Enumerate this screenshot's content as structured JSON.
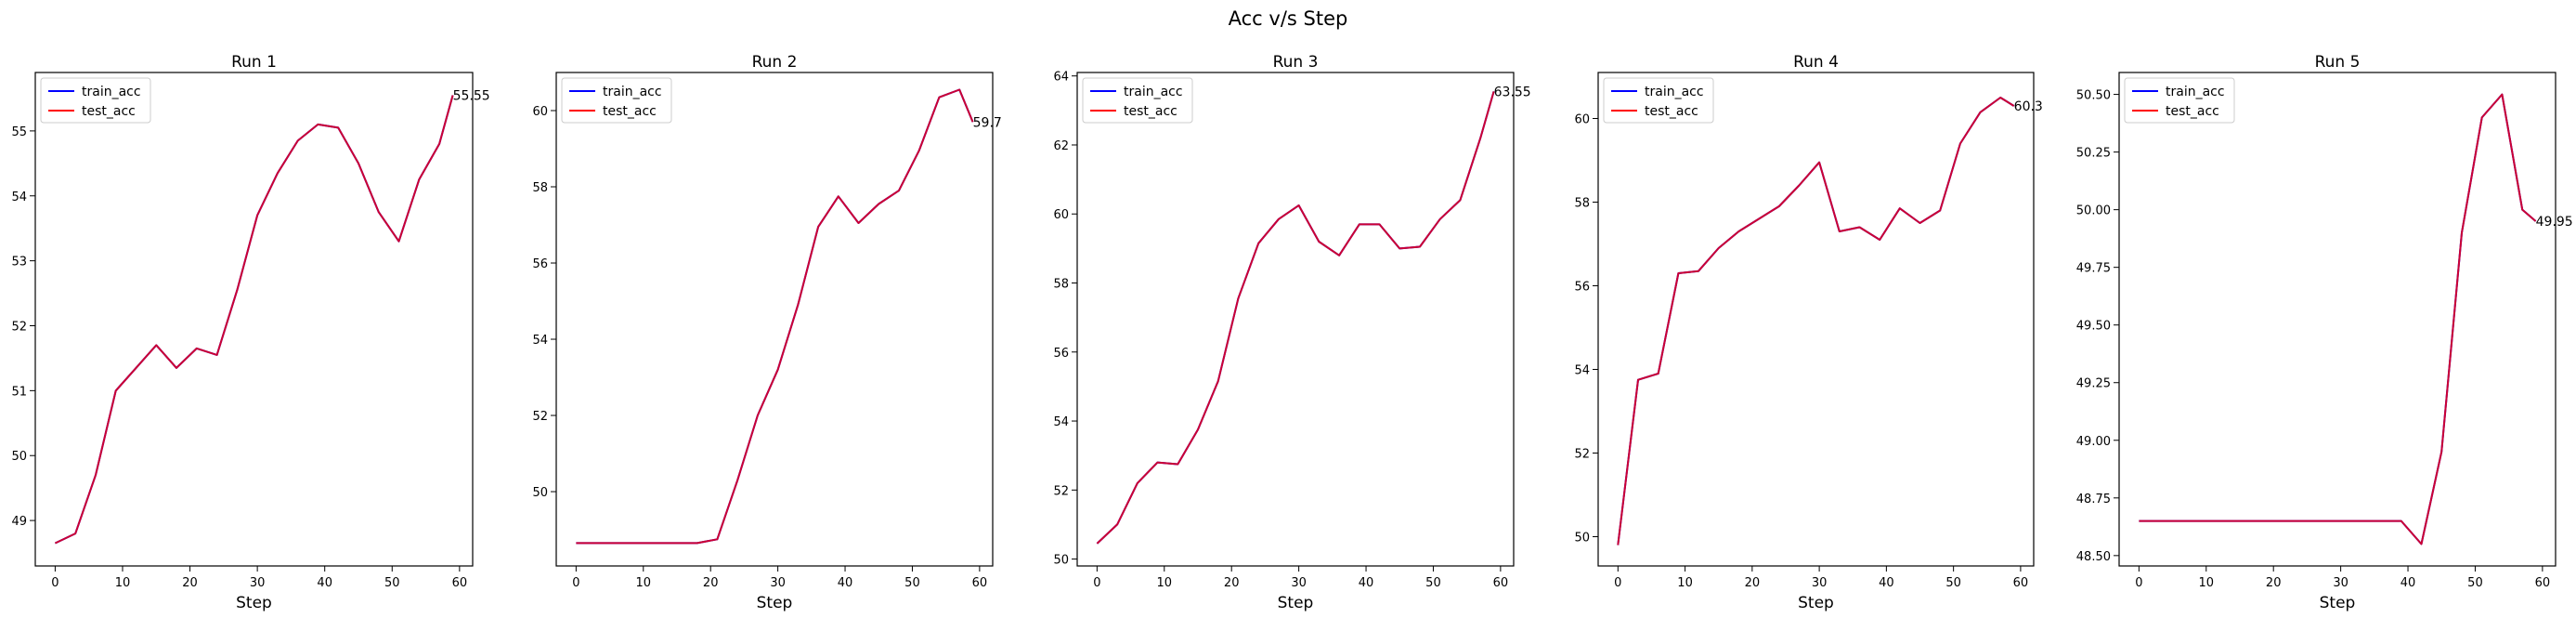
{
  "figure": {
    "suptitle": "Acc v/s Step"
  },
  "colors": {
    "train": "#0000ff",
    "test": "#ff0000",
    "mixed": "#cc0033",
    "axes": "#000000"
  },
  "chart_data": [
    {
      "type": "line",
      "title": "Run 1",
      "xlabel": "Step",
      "ylabel": "",
      "legend": "upper-left",
      "xlim": [
        -2.95,
        61.95
      ],
      "ylim": [
        48.3,
        55.9
      ],
      "xticks": [
        0,
        10,
        20,
        30,
        40,
        50,
        60
      ],
      "yticks": [
        49,
        50,
        51,
        52,
        53,
        54,
        55
      ],
      "annotation": {
        "x": 59,
        "y": 55.55,
        "text": "55.55"
      },
      "x": [
        0,
        3,
        6,
        9,
        12,
        15,
        18,
        21,
        24,
        27,
        30,
        33,
        36,
        39,
        42,
        45,
        48,
        51,
        54,
        57,
        59
      ],
      "series": [
        {
          "name": "train_acc",
          "color": "#0000ff",
          "values": [
            48.65,
            48.8,
            49.7,
            51.0,
            51.35,
            51.7,
            51.35,
            51.65,
            51.55,
            52.55,
            53.7,
            54.35,
            54.85,
            55.1,
            55.05,
            54.5,
            53.75,
            53.3,
            54.25,
            54.8,
            55.55
          ]
        },
        {
          "name": "test_acc",
          "color": "#ff0000",
          "values": [
            48.65,
            48.8,
            49.7,
            51.0,
            51.35,
            51.7,
            51.35,
            51.65,
            51.55,
            52.55,
            53.7,
            54.35,
            54.85,
            55.1,
            55.05,
            54.5,
            53.75,
            53.3,
            54.25,
            54.8,
            55.55
          ]
        }
      ]
    },
    {
      "type": "line",
      "title": "Run 2",
      "xlabel": "Step",
      "ylabel": "",
      "legend": "upper-left",
      "xlim": [
        -2.95,
        61.95
      ],
      "ylim": [
        48.05,
        61.0
      ],
      "xticks": [
        0,
        10,
        20,
        30,
        40,
        50,
        60
      ],
      "yticks": [
        50,
        52,
        54,
        56,
        58,
        60
      ],
      "annotation": {
        "x": 59,
        "y": 59.7,
        "text": "59.7"
      },
      "x": [
        0,
        3,
        6,
        9,
        12,
        15,
        18,
        21,
        24,
        27,
        30,
        33,
        36,
        39,
        42,
        45,
        48,
        51,
        54,
        57,
        59
      ],
      "series": [
        {
          "name": "train_acc",
          "color": "#0000ff",
          "values": [
            48.65,
            48.65,
            48.65,
            48.65,
            48.65,
            48.65,
            48.65,
            48.75,
            50.3,
            52.0,
            53.2,
            54.9,
            56.95,
            57.75,
            57.05,
            57.55,
            57.9,
            58.95,
            60.35,
            60.55,
            59.7
          ]
        },
        {
          "name": "test_acc",
          "color": "#ff0000",
          "values": [
            48.65,
            48.65,
            48.65,
            48.65,
            48.65,
            48.65,
            48.65,
            48.75,
            50.3,
            52.0,
            53.2,
            54.9,
            56.95,
            57.75,
            57.05,
            57.55,
            57.9,
            58.95,
            60.35,
            60.55,
            59.7
          ]
        }
      ]
    },
    {
      "type": "line",
      "title": "Run 3",
      "xlabel": "Step",
      "ylabel": "",
      "legend": "upper-left",
      "xlim": [
        -2.95,
        61.95
      ],
      "ylim": [
        49.8,
        64.1
      ],
      "xticks": [
        0,
        10,
        20,
        30,
        40,
        50,
        60
      ],
      "yticks": [
        50,
        52,
        54,
        56,
        58,
        60,
        62,
        64
      ],
      "annotation": {
        "x": 59,
        "y": 63.55,
        "text": "63.55"
      },
      "x": [
        0,
        3,
        6,
        9,
        12,
        15,
        18,
        21,
        24,
        27,
        30,
        33,
        36,
        39,
        42,
        45,
        48,
        51,
        54,
        57,
        59
      ],
      "series": [
        {
          "name": "train_acc",
          "color": "#0000ff",
          "values": [
            50.45,
            51.0,
            52.2,
            52.8,
            52.75,
            53.75,
            55.15,
            57.55,
            59.15,
            59.85,
            60.25,
            59.2,
            58.8,
            59.7,
            59.7,
            59.0,
            59.05,
            59.85,
            60.4,
            62.2,
            63.55
          ]
        },
        {
          "name": "test_acc",
          "color": "#ff0000",
          "values": [
            50.45,
            51.0,
            52.2,
            52.8,
            52.75,
            53.75,
            55.15,
            57.55,
            59.15,
            59.85,
            60.25,
            59.2,
            58.8,
            59.7,
            59.7,
            59.0,
            59.05,
            59.85,
            60.4,
            62.2,
            63.55
          ]
        }
      ]
    },
    {
      "type": "line",
      "title": "Run 4",
      "xlabel": "Step",
      "ylabel": "",
      "legend": "upper-left",
      "xlim": [
        -2.95,
        61.95
      ],
      "ylim": [
        49.3,
        61.1
      ],
      "xticks": [
        0,
        10,
        20,
        30,
        40,
        50,
        60
      ],
      "yticks": [
        50,
        52,
        54,
        56,
        58,
        60
      ],
      "annotation": {
        "x": 59,
        "y": 60.3,
        "text": "60.3"
      },
      "x": [
        0,
        3,
        6,
        9,
        12,
        15,
        18,
        21,
        24,
        27,
        30,
        33,
        36,
        39,
        42,
        45,
        48,
        51,
        54,
        57,
        59
      ],
      "series": [
        {
          "name": "train_acc",
          "color": "#0000ff",
          "values": [
            49.8,
            53.75,
            53.9,
            56.3,
            56.35,
            56.9,
            57.3,
            57.6,
            57.9,
            58.4,
            58.95,
            57.3,
            57.4,
            57.1,
            57.85,
            57.5,
            57.8,
            59.4,
            60.15,
            60.5,
            60.3
          ]
        },
        {
          "name": "test_acc",
          "color": "#ff0000",
          "values": [
            49.8,
            53.75,
            53.9,
            56.3,
            56.35,
            56.9,
            57.3,
            57.6,
            57.9,
            58.4,
            58.95,
            57.3,
            57.4,
            57.1,
            57.85,
            57.5,
            57.8,
            59.4,
            60.15,
            60.5,
            60.3
          ]
        }
      ]
    },
    {
      "type": "line",
      "title": "Run 5",
      "xlabel": "Step",
      "ylabel": "",
      "legend": "upper-left",
      "xlim": [
        -2.95,
        61.95
      ],
      "ylim": [
        48.455,
        50.595
      ],
      "xticks": [
        0,
        10,
        20,
        30,
        40,
        50,
        60
      ],
      "yticks": [
        48.5,
        48.75,
        49.0,
        49.25,
        49.5,
        49.75,
        50.0,
        50.25,
        50.5
      ],
      "ytick_labels": [
        "48.50",
        "48.75",
        "49.00",
        "49.25",
        "49.50",
        "49.75",
        "50.00",
        "50.25",
        "50.50"
      ],
      "annotation": {
        "x": 59,
        "y": 49.95,
        "text": "49.95"
      },
      "x": [
        0,
        3,
        6,
        9,
        12,
        15,
        18,
        21,
        24,
        27,
        30,
        33,
        36,
        39,
        42,
        45,
        48,
        51,
        54,
        57,
        59
      ],
      "series": [
        {
          "name": "train_acc",
          "color": "#0000ff",
          "values": [
            48.65,
            48.65,
            48.65,
            48.65,
            48.65,
            48.65,
            48.65,
            48.65,
            48.65,
            48.65,
            48.65,
            48.65,
            48.65,
            48.65,
            48.55,
            48.95,
            49.9,
            50.4,
            50.5,
            50.0,
            49.95
          ]
        },
        {
          "name": "test_acc",
          "color": "#ff0000",
          "values": [
            48.65,
            48.65,
            48.65,
            48.65,
            48.65,
            48.65,
            48.65,
            48.65,
            48.65,
            48.65,
            48.65,
            48.65,
            48.65,
            48.65,
            48.55,
            48.95,
            49.9,
            50.4,
            50.5,
            50.0,
            49.95
          ]
        }
      ]
    }
  ]
}
